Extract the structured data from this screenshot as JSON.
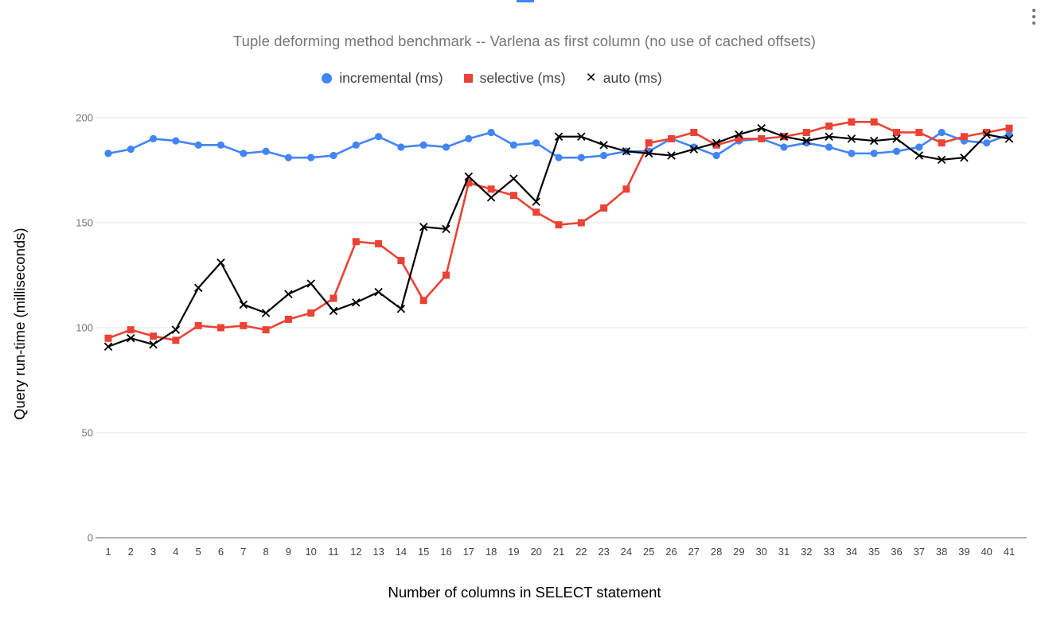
{
  "window": {
    "menu_tooltip": "chart options",
    "selection_fragment_color": "#4285f4",
    "background": "#ffffff"
  },
  "chart_data": {
    "type": "line",
    "title": "Tuple deforming method benchmark -- Varlena as first column (no use of cached offsets)",
    "title_color": "#757575",
    "xlabel": "Number of columns in SELECT statement",
    "ylabel": "Query run-time (milliseconds)",
    "legend_position": "top",
    "grid": true,
    "ylim": [
      0,
      200
    ],
    "yticks": [
      0,
      50,
      100,
      150,
      200
    ],
    "x": [
      1,
      2,
      3,
      4,
      5,
      6,
      7,
      8,
      9,
      10,
      11,
      12,
      13,
      14,
      15,
      16,
      17,
      18,
      19,
      20,
      21,
      22,
      23,
      24,
      25,
      26,
      27,
      28,
      29,
      30,
      31,
      32,
      33,
      34,
      35,
      36,
      37,
      38,
      39,
      40,
      41
    ],
    "series": [
      {
        "name": "incremental (ms)",
        "color": "#4285f4",
        "marker": "circle",
        "values": [
          183,
          185,
          190,
          189,
          187,
          187,
          183,
          184,
          181,
          181,
          182,
          187,
          191,
          186,
          187,
          186,
          190,
          193,
          187,
          188,
          181,
          181,
          182,
          184,
          184,
          190,
          186,
          182,
          189,
          190,
          186,
          188,
          186,
          183,
          183,
          184,
          186,
          193,
          189,
          188,
          192
        ]
      },
      {
        "name": "selective (ms)",
        "color": "#ea4335",
        "marker": "square",
        "values": [
          95,
          99,
          96,
          94,
          101,
          100,
          101,
          99,
          104,
          107,
          114,
          141,
          140,
          132,
          113,
          125,
          169,
          166,
          163,
          155,
          149,
          150,
          157,
          166,
          188,
          190,
          193,
          187,
          190,
          190,
          191,
          193,
          196,
          198,
          198,
          193,
          193,
          188,
          191,
          193,
          195
        ]
      },
      {
        "name": "auto (ms)",
        "color": "#000000",
        "marker": "x",
        "values": [
          91,
          95,
          92,
          99,
          119,
          131,
          111,
          107,
          116,
          121,
          108,
          112,
          117,
          109,
          148,
          147,
          172,
          162,
          171,
          160,
          191,
          191,
          187,
          184,
          183,
          182,
          185,
          188,
          192,
          195,
          191,
          189,
          191,
          190,
          189,
          190,
          182,
          180,
          181,
          192,
          190
        ]
      }
    ],
    "axis_colors": {
      "grid": "#e6e6e6",
      "baseline": "#616161",
      "ytick_text": "#757575",
      "xtick_text": "#424242",
      "legend_text": "#424242"
    }
  }
}
